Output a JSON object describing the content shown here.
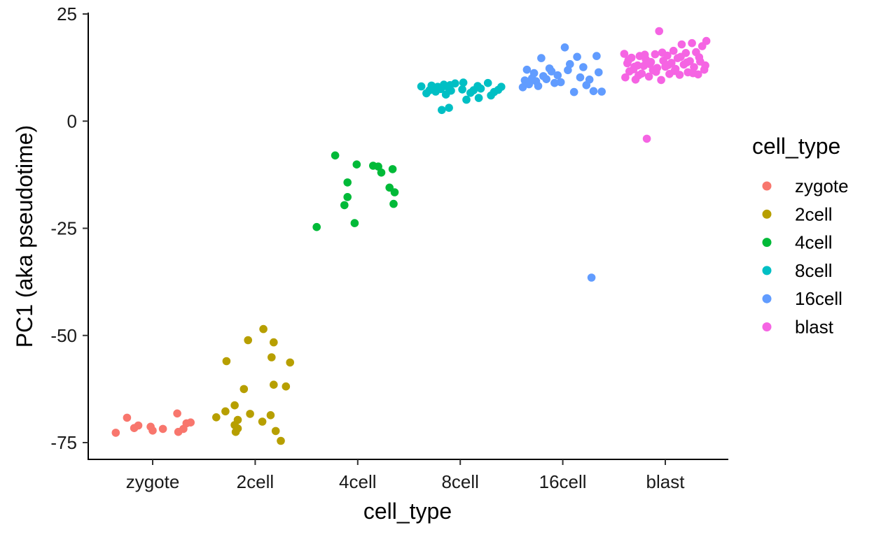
{
  "chart_data": {
    "type": "scatter",
    "title": "",
    "xlabel": "cell_type",
    "ylabel": "PC1 (aka pseudotime)",
    "categories": [
      "zygote",
      "2cell",
      "4cell",
      "8cell",
      "16cell",
      "blast"
    ],
    "ylim": [
      -80,
      25
    ],
    "yticks": [
      25,
      0,
      -25,
      -50,
      -75
    ],
    "grid": false,
    "legend": {
      "title": "cell_type",
      "position": "right",
      "entries": [
        {
          "label": "zygote",
          "color": "#F8766D"
        },
        {
          "label": "2cell",
          "color": "#B79F00"
        },
        {
          "label": "4cell",
          "color": "#00BA38"
        },
        {
          "label": "8cell",
          "color": "#00BFC4"
        },
        {
          "label": "16cell",
          "color": "#619CFF"
        },
        {
          "label": "blast",
          "color": "#F564E3"
        }
      ]
    },
    "series": [
      {
        "category": "zygote",
        "color": "#F8766D",
        "points": [
          {
            "jitter": -0.36,
            "y": -72.7
          },
          {
            "jitter": -0.25,
            "y": -69.2
          },
          {
            "jitter": -0.18,
            "y": -71.6
          },
          {
            "jitter": -0.14,
            "y": -71.0
          },
          {
            "jitter": -0.02,
            "y": -71.3
          },
          {
            "jitter": 0.0,
            "y": -72.2
          },
          {
            "jitter": 0.1,
            "y": -71.8
          },
          {
            "jitter": 0.24,
            "y": -68.2
          },
          {
            "jitter": 0.25,
            "y": -72.5
          },
          {
            "jitter": 0.3,
            "y": -71.8
          },
          {
            "jitter": 0.33,
            "y": -70.5
          },
          {
            "jitter": 0.37,
            "y": -70.3
          }
        ]
      },
      {
        "category": "2cell",
        "color": "#B79F00",
        "points": [
          {
            "jitter": -0.38,
            "y": -69.1
          },
          {
            "jitter": -0.28,
            "y": -56.0
          },
          {
            "jitter": -0.29,
            "y": -67.7
          },
          {
            "jitter": -0.2,
            "y": -66.3
          },
          {
            "jitter": -0.2,
            "y": -70.9
          },
          {
            "jitter": -0.19,
            "y": -72.5
          },
          {
            "jitter": -0.17,
            "y": -69.7
          },
          {
            "jitter": -0.17,
            "y": -71.7
          },
          {
            "jitter": -0.11,
            "y": -62.5
          },
          {
            "jitter": -0.07,
            "y": -51.1
          },
          {
            "jitter": -0.05,
            "y": -68.3
          },
          {
            "jitter": 0.07,
            "y": -70.1
          },
          {
            "jitter": 0.08,
            "y": -48.5
          },
          {
            "jitter": 0.15,
            "y": -68.6
          },
          {
            "jitter": 0.16,
            "y": -55.1
          },
          {
            "jitter": 0.18,
            "y": -51.6
          },
          {
            "jitter": 0.18,
            "y": -61.5
          },
          {
            "jitter": 0.2,
            "y": -72.3
          },
          {
            "jitter": 0.25,
            "y": -74.6
          },
          {
            "jitter": 0.3,
            "y": -61.9
          },
          {
            "jitter": 0.34,
            "y": -56.3
          }
        ]
      },
      {
        "category": "4cell",
        "color": "#00BA38",
        "points": [
          {
            "jitter": -0.4,
            "y": -24.7
          },
          {
            "jitter": -0.22,
            "y": -8.0
          },
          {
            "jitter": -0.13,
            "y": -19.6
          },
          {
            "jitter": -0.1,
            "y": -14.3
          },
          {
            "jitter": -0.1,
            "y": -17.7
          },
          {
            "jitter": -0.03,
            "y": -23.8
          },
          {
            "jitter": -0.01,
            "y": -10.1
          },
          {
            "jitter": 0.15,
            "y": -10.4
          },
          {
            "jitter": 0.2,
            "y": -10.6
          },
          {
            "jitter": 0.23,
            "y": -12.0
          },
          {
            "jitter": 0.31,
            "y": -15.5
          },
          {
            "jitter": 0.34,
            "y": -11.2
          },
          {
            "jitter": 0.36,
            "y": -16.6
          },
          {
            "jitter": 0.35,
            "y": -19.3
          }
        ]
      },
      {
        "category": "8cell",
        "color": "#00BFC4",
        "points": [
          {
            "jitter": -0.38,
            "y": 8.1
          },
          {
            "jitter": -0.33,
            "y": 6.5
          },
          {
            "jitter": -0.3,
            "y": 7.2
          },
          {
            "jitter": -0.28,
            "y": 8.3
          },
          {
            "jitter": -0.25,
            "y": 7.8
          },
          {
            "jitter": -0.24,
            "y": 6.9
          },
          {
            "jitter": -0.22,
            "y": 8.0
          },
          {
            "jitter": -0.19,
            "y": 7.5
          },
          {
            "jitter": -0.18,
            "y": 2.6
          },
          {
            "jitter": -0.16,
            "y": 8.5
          },
          {
            "jitter": -0.14,
            "y": 6.2
          },
          {
            "jitter": -0.12,
            "y": 7.9
          },
          {
            "jitter": -0.11,
            "y": 3.1
          },
          {
            "jitter": -0.1,
            "y": 8.4
          },
          {
            "jitter": -0.09,
            "y": 7.1
          },
          {
            "jitter": -0.05,
            "y": 8.8
          },
          {
            "jitter": 0.02,
            "y": 7.4
          },
          {
            "jitter": 0.03,
            "y": 9.0
          },
          {
            "jitter": 0.06,
            "y": 5.0
          },
          {
            "jitter": 0.1,
            "y": 6.6
          },
          {
            "jitter": 0.13,
            "y": 7.2
          },
          {
            "jitter": 0.17,
            "y": 8.2
          },
          {
            "jitter": 0.18,
            "y": 5.4
          },
          {
            "jitter": 0.2,
            "y": 7.6
          },
          {
            "jitter": 0.27,
            "y": 8.9
          },
          {
            "jitter": 0.3,
            "y": 6.0
          },
          {
            "jitter": 0.33,
            "y": 6.8
          },
          {
            "jitter": 0.37,
            "y": 7.3
          },
          {
            "jitter": 0.4,
            "y": 8.0
          }
        ]
      },
      {
        "category": "16cell",
        "color": "#619CFF",
        "points": [
          {
            "jitter": -0.39,
            "y": 7.9
          },
          {
            "jitter": -0.37,
            "y": 9.5
          },
          {
            "jitter": -0.35,
            "y": 12.0
          },
          {
            "jitter": -0.33,
            "y": 8.6
          },
          {
            "jitter": -0.3,
            "y": 10.0
          },
          {
            "jitter": -0.28,
            "y": 11.2
          },
          {
            "jitter": -0.26,
            "y": 9.3
          },
          {
            "jitter": -0.24,
            "y": 8.2
          },
          {
            "jitter": -0.21,
            "y": 14.7
          },
          {
            "jitter": -0.19,
            "y": 10.5
          },
          {
            "jitter": -0.16,
            "y": 9.8
          },
          {
            "jitter": -0.13,
            "y": 12.3
          },
          {
            "jitter": -0.11,
            "y": 11.6
          },
          {
            "jitter": -0.08,
            "y": 8.9
          },
          {
            "jitter": -0.05,
            "y": 10.7
          },
          {
            "jitter": -0.02,
            "y": 9.1
          },
          {
            "jitter": 0.02,
            "y": 17.2
          },
          {
            "jitter": 0.05,
            "y": 11.9
          },
          {
            "jitter": 0.07,
            "y": 13.3
          },
          {
            "jitter": 0.11,
            "y": 6.8
          },
          {
            "jitter": 0.14,
            "y": 15.0
          },
          {
            "jitter": 0.17,
            "y": 10.2
          },
          {
            "jitter": 0.2,
            "y": 12.6
          },
          {
            "jitter": 0.23,
            "y": 8.4
          },
          {
            "jitter": 0.26,
            "y": 9.7
          },
          {
            "jitter": 0.28,
            "y": -36.5
          },
          {
            "jitter": 0.3,
            "y": 7.0
          },
          {
            "jitter": 0.33,
            "y": 15.2
          },
          {
            "jitter": 0.35,
            "y": 11.4
          },
          {
            "jitter": 0.38,
            "y": 6.9
          }
        ]
      },
      {
        "category": "blast",
        "color": "#F564E3",
        "points": [
          {
            "jitter": -0.4,
            "y": 15.7
          },
          {
            "jitter": -0.39,
            "y": 10.2
          },
          {
            "jitter": -0.37,
            "y": 13.5
          },
          {
            "jitter": -0.35,
            "y": 11.6
          },
          {
            "jitter": -0.33,
            "y": 14.8
          },
          {
            "jitter": -0.31,
            "y": 12.1
          },
          {
            "jitter": -0.29,
            "y": 9.7
          },
          {
            "jitter": -0.27,
            "y": 13.0
          },
          {
            "jitter": -0.25,
            "y": 15.2
          },
          {
            "jitter": -0.23,
            "y": 11.1
          },
          {
            "jitter": -0.21,
            "y": 12.9
          },
          {
            "jitter": -0.19,
            "y": 14.4
          },
          {
            "jitter": -0.18,
            "y": -4.1
          },
          {
            "jitter": -0.16,
            "y": 10.4
          },
          {
            "jitter": -0.14,
            "y": 13.8
          },
          {
            "jitter": -0.12,
            "y": 11.9
          },
          {
            "jitter": -0.1,
            "y": 15.6
          },
          {
            "jitter": -0.08,
            "y": 12.4
          },
          {
            "jitter": -0.06,
            "y": 21.0
          },
          {
            "jitter": -0.04,
            "y": 9.6
          },
          {
            "jitter": -0.02,
            "y": 14.1
          },
          {
            "jitter": 0.0,
            "y": 12.7
          },
          {
            "jitter": 0.02,
            "y": 15.3
          },
          {
            "jitter": 0.04,
            "y": 11.0
          },
          {
            "jitter": 0.06,
            "y": 13.6
          },
          {
            "jitter": 0.08,
            "y": 16.4
          },
          {
            "jitter": 0.1,
            "y": 12.2
          },
          {
            "jitter": 0.12,
            "y": 14.7
          },
          {
            "jitter": 0.14,
            "y": 10.8
          },
          {
            "jitter": 0.16,
            "y": 17.9
          },
          {
            "jitter": 0.18,
            "y": 13.2
          },
          {
            "jitter": 0.2,
            "y": 15.9
          },
          {
            "jitter": 0.22,
            "y": 11.4
          },
          {
            "jitter": 0.24,
            "y": 14.0
          },
          {
            "jitter": 0.26,
            "y": 18.2
          },
          {
            "jitter": 0.28,
            "y": 12.6
          },
          {
            "jitter": 0.3,
            "y": 16.1
          },
          {
            "jitter": 0.32,
            "y": 10.9
          },
          {
            "jitter": 0.34,
            "y": 13.9
          },
          {
            "jitter": 0.36,
            "y": 17.5
          },
          {
            "jitter": 0.38,
            "y": 12.0
          },
          {
            "jitter": 0.4,
            "y": 18.7
          },
          {
            "jitter": -0.36,
            "y": 14.2
          },
          {
            "jitter": -0.3,
            "y": 12.7
          },
          {
            "jitter": -0.26,
            "y": 10.7
          },
          {
            "jitter": -0.2,
            "y": 15.5
          },
          {
            "jitter": -0.15,
            "y": 13.3
          },
          {
            "jitter": -0.09,
            "y": 11.5
          },
          {
            "jitter": -0.03,
            "y": 16.0
          },
          {
            "jitter": 0.03,
            "y": 13.1
          },
          {
            "jitter": 0.09,
            "y": 11.7
          },
          {
            "jitter": 0.15,
            "y": 15.0
          },
          {
            "jitter": 0.21,
            "y": 13.7
          },
          {
            "jitter": 0.27,
            "y": 11.2
          },
          {
            "jitter": 0.33,
            "y": 14.9
          },
          {
            "jitter": 0.39,
            "y": 13.0
          }
        ]
      }
    ]
  }
}
